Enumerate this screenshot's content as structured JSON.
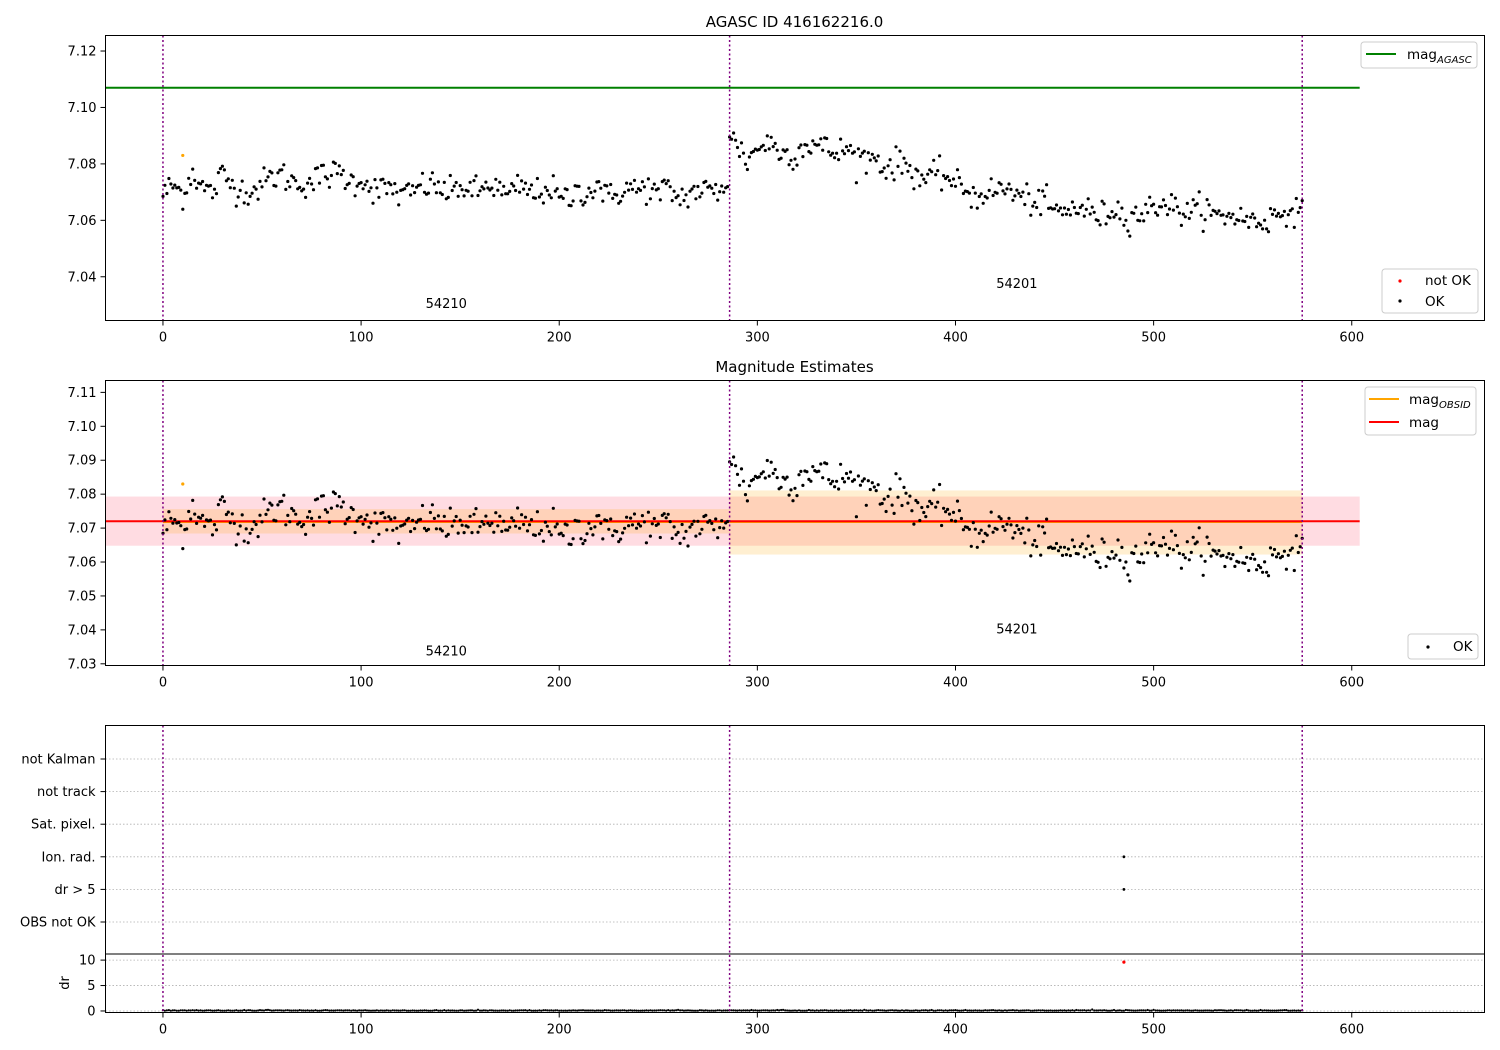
{
  "chart_data": [
    {
      "type": "scatter",
      "title": "AGASC ID 416162216.0",
      "xlim": [
        -29,
        667
      ],
      "ylim": [
        7.0245,
        7.1255
      ],
      "xticks": [
        0,
        100,
        200,
        300,
        400,
        500,
        600
      ],
      "yticks": [
        7.04,
        7.06,
        7.08,
        7.1,
        7.12
      ],
      "vlines": [
        0,
        286,
        575
      ],
      "lines": [
        {
          "name": "mag",
          "subscript": "AGASC",
          "y": 7.107,
          "x_range": [
            -29,
            604
          ],
          "color": "#008000"
        }
      ],
      "obsid_labels": [
        {
          "text": "54210",
          "x": 143,
          "y": 7.029
        },
        {
          "text": "54201",
          "x": 431,
          "y": 7.036
        }
      ],
      "outliers": [
        {
          "x": 10,
          "y": 7.083,
          "color": "#ffa500"
        }
      ],
      "segments": [
        {
          "x_start": 0,
          "x_end": 285,
          "points": [
            [
              0,
              7.0693
            ],
            [
              5,
              7.0725
            ],
            [
              10,
              7.0693
            ],
            [
              15,
              7.0774
            ],
            [
              20,
              7.0714
            ],
            [
              25,
              7.0698
            ],
            [
              30,
              7.0763
            ],
            [
              35,
              7.0725
            ],
            [
              40,
              7.0709
            ],
            [
              45,
              7.0703
            ],
            [
              50,
              7.0728
            ],
            [
              55,
              7.0753
            ],
            [
              60,
              7.0762
            ],
            [
              65,
              7.0737
            ],
            [
              70,
              7.0731
            ],
            [
              75,
              7.0736
            ],
            [
              80,
              7.0756
            ],
            [
              85,
              7.0763
            ],
            [
              90,
              7.0767
            ],
            [
              95,
              7.0733
            ],
            [
              100,
              7.0749
            ],
            [
              105,
              7.0717
            ],
            [
              110,
              7.0704
            ],
            [
              115,
              7.0718
            ],
            [
              120,
              7.0688
            ],
            [
              125,
              7.0692
            ],
            [
              130,
              7.0723
            ],
            [
              135,
              7.0725
            ],
            [
              140,
              7.0713
            ],
            [
              145,
              7.0694
            ],
            [
              150,
              7.0726
            ],
            [
              155,
              7.0701
            ],
            [
              160,
              7.0703
            ],
            [
              165,
              7.0731
            ],
            [
              170,
              7.0704
            ],
            [
              175,
              7.0683
            ],
            [
              180,
              7.0724
            ],
            [
              185,
              7.0698
            ],
            [
              190,
              7.0698
            ],
            [
              195,
              7.0719
            ],
            [
              200,
              7.0676
            ],
            [
              205,
              7.0675
            ],
            [
              210,
              7.0707
            ],
            [
              215,
              7.0699
            ],
            [
              220,
              7.0732
            ],
            [
              225,
              7.0672
            ],
            [
              230,
              7.0701
            ],
            [
              235,
              7.0715
            ],
            [
              240,
              7.0705
            ],
            [
              245,
              7.0719
            ],
            [
              250,
              7.0686
            ],
            [
              255,
              7.0716
            ],
            [
              260,
              7.0677
            ],
            [
              265,
              7.0691
            ],
            [
              270,
              7.0708
            ],
            [
              275,
              7.0703
            ],
            [
              280,
              7.0699
            ],
            [
              285,
              7.0748
            ]
          ]
        },
        {
          "x_start": 286,
          "x_end": 575,
          "points": [
            [
              286,
              7.0897
            ],
            [
              290,
              7.0865
            ],
            [
              295,
              7.0812
            ],
            [
              300,
              7.0856
            ],
            [
              305,
              7.0878
            ],
            [
              310,
              7.0852
            ],
            [
              315,
              7.0832
            ],
            [
              320,
              7.0841
            ],
            [
              325,
              7.0874
            ],
            [
              330,
              7.0867
            ],
            [
              335,
              7.0851
            ],
            [
              340,
              7.0836
            ],
            [
              345,
              7.0855
            ],
            [
              350,
              7.0824
            ],
            [
              355,
              7.0821
            ],
            [
              360,
              7.0823
            ],
            [
              365,
              7.0783
            ],
            [
              370,
              7.0802
            ],
            [
              375,
              7.0798
            ],
            [
              380,
              7.0765
            ],
            [
              385,
              7.0747
            ],
            [
              390,
              7.0754
            ],
            [
              395,
              7.0763
            ],
            [
              400,
              7.0722
            ],
            [
              405,
              7.0716
            ],
            [
              410,
              7.0678
            ],
            [
              415,
              7.0705
            ],
            [
              420,
              7.0697
            ],
            [
              425,
              7.0718
            ],
            [
              430,
              7.0689
            ],
            [
              435,
              7.0677
            ],
            [
              440,
              7.0667
            ],
            [
              445,
              7.0659
            ],
            [
              450,
              7.0635
            ],
            [
              455,
              7.0621
            ],
            [
              460,
              7.0651
            ],
            [
              465,
              7.0638
            ],
            [
              470,
              7.0621
            ],
            [
              475,
              7.0613
            ],
            [
              480,
              7.0649
            ],
            [
              485,
              7.0614
            ],
            [
              490,
              7.0623
            ],
            [
              495,
              7.0623
            ],
            [
              500,
              7.0649
            ],
            [
              505,
              7.0668
            ],
            [
              510,
              7.0641
            ],
            [
              515,
              7.0632
            ],
            [
              520,
              7.0627
            ],
            [
              525,
              7.0649
            ],
            [
              530,
              7.0615
            ],
            [
              535,
              7.0612
            ],
            [
              540,
              7.0623
            ],
            [
              545,
              7.0604
            ],
            [
              550,
              7.0598
            ],
            [
              555,
              7.0595
            ],
            [
              560,
              7.0612
            ],
            [
              565,
              7.0626
            ],
            [
              570,
              7.0651
            ],
            [
              575,
              7.0613
            ]
          ]
        }
      ],
      "legend": [
        {
          "label": "mag",
          "subscript": "AGASC",
          "kind": "line",
          "color": "#008000",
          "placement": "upper-right"
        }
      ],
      "legend2": [
        {
          "label": "not OK",
          "kind": "point",
          "color": "#ff0000"
        },
        {
          "label": "OK",
          "kind": "point",
          "color": "#000000"
        }
      ]
    },
    {
      "type": "scatter",
      "title": "Magnitude Estimates",
      "xlim": [
        -29,
        667
      ],
      "ylim": [
        7.0295,
        7.1135
      ],
      "xticks": [
        0,
        100,
        200,
        300,
        400,
        500,
        600
      ],
      "yticks": [
        7.03,
        7.04,
        7.05,
        7.06,
        7.07,
        7.08,
        7.09,
        7.1,
        7.11
      ],
      "vlines": [
        0,
        286,
        575
      ],
      "mag_line": {
        "y": 7.072,
        "x_range": [
          -29,
          604
        ],
        "color": "#ff0000",
        "band": [
          7.0648,
          7.0793
        ],
        "band_color": "#ffc0cb"
      },
      "obsid_segments": [
        {
          "x_range": [
            0,
            286
          ],
          "mag": 7.0718,
          "band_inner": [
            7.0684,
            7.0756
          ],
          "color": "#ffa500"
        },
        {
          "x_range": [
            286,
            575
          ],
          "mag": 7.0718,
          "band_inner": [
            7.0622,
            7.0811
          ],
          "color": "#ffa500"
        }
      ],
      "obsid_labels": [
        {
          "text": "54210",
          "x": 143,
          "y": 7.0325
        },
        {
          "text": "54201",
          "x": 431,
          "y": 7.039
        }
      ],
      "outliers": [
        {
          "x": 10,
          "y": 7.083,
          "color": "#ffa500"
        }
      ],
      "legend": [
        {
          "label": "mag",
          "subscript": "OBSID",
          "kind": "line",
          "color": "#ffa500"
        },
        {
          "label": "mag",
          "subscript": "",
          "kind": "line",
          "color": "#ff0000"
        }
      ],
      "legend2": [
        {
          "label": "OK",
          "kind": "point",
          "color": "#000000"
        }
      ]
    },
    {
      "type": "scatter",
      "title": "",
      "xlim": [
        -29,
        667
      ],
      "xticks": [
        0,
        100,
        200,
        300,
        400,
        500,
        600
      ],
      "vlines": [
        0,
        286,
        575
      ],
      "flag_rows": [
        "not Kalman",
        "not track",
        "Sat. pixel.",
        "Ion. rad.",
        "dr > 5",
        "OBS not OK"
      ],
      "flag_points": [
        {
          "row": "Ion. rad.",
          "x": 485
        },
        {
          "row": "dr > 5",
          "x": 485
        }
      ],
      "dr_axis": {
        "ylabel": "dr",
        "ylim": [
          -0.3,
          11.2
        ],
        "yticks": [
          0,
          5,
          10
        ]
      },
      "dr_points": [
        {
          "x": 485,
          "y": 9.6,
          "color": "#ff0000"
        }
      ],
      "dr_baseline": 0.05
    }
  ]
}
